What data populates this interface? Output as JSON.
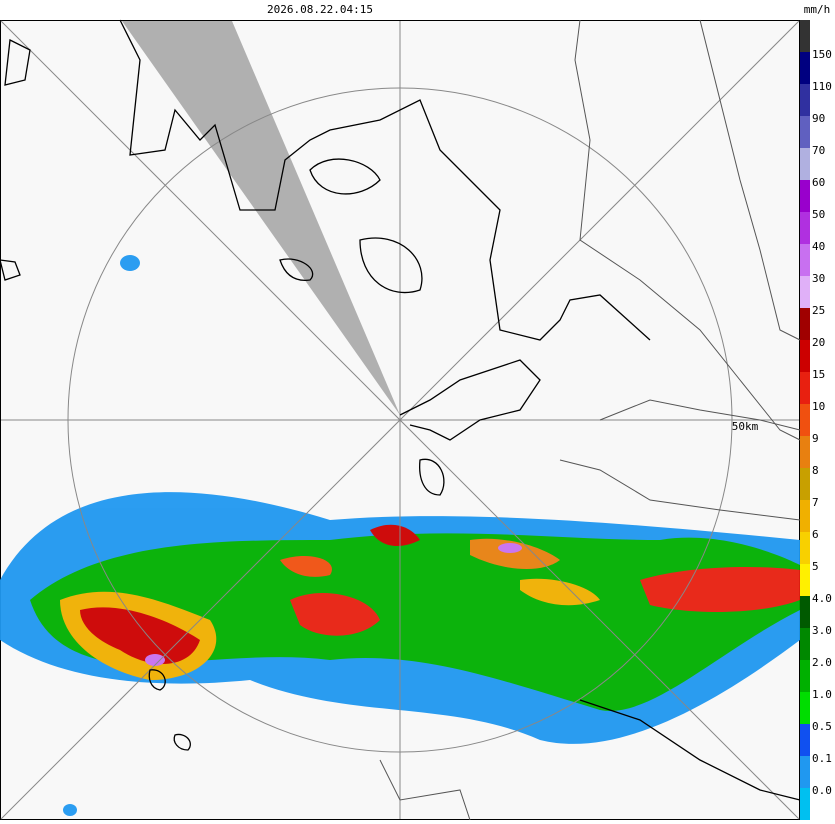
{
  "header": {
    "timestamp": "2026.08.22.04:15",
    "unit": "mm/h"
  },
  "map": {
    "range_label": "50km"
  },
  "legend": {
    "items": [
      {
        "label": null,
        "color": "#333333"
      },
      {
        "label": "150",
        "color": "#000080"
      },
      {
        "label": "110",
        "color": "#3030a0"
      },
      {
        "label": "90",
        "color": "#6060c0"
      },
      {
        "label": "70",
        "color": "#b0b0e0"
      },
      {
        "label": "60",
        "color": "#9900cc"
      },
      {
        "label": "50",
        "color": "#b030e0"
      },
      {
        "label": "40",
        "color": "#c870f0"
      },
      {
        "label": "30",
        "color": "#e0b0f8"
      },
      {
        "label": "25",
        "color": "#a00000"
      },
      {
        "label": "20",
        "color": "#cc0000"
      },
      {
        "label": "15",
        "color": "#e82010"
      },
      {
        "label": "10",
        "color": "#f05010"
      },
      {
        "label": "9",
        "color": "#e88010"
      },
      {
        "label": "8",
        "color": "#c8a000"
      },
      {
        "label": "7",
        "color": "#f0b000"
      },
      {
        "label": "6",
        "color": "#f8d000"
      },
      {
        "label": "5",
        "color": "#fff000"
      },
      {
        "label": "4.0",
        "color": "#005a00"
      },
      {
        "label": "3.0",
        "color": "#008800"
      },
      {
        "label": "2.0",
        "color": "#00b000"
      },
      {
        "label": "1.0",
        "color": "#00dd00"
      },
      {
        "label": "0.5",
        "color": "#1050f0"
      },
      {
        "label": "0.1",
        "color": "#2098f0"
      },
      {
        "label": "0.0",
        "color": "#00c0f0"
      }
    ]
  }
}
